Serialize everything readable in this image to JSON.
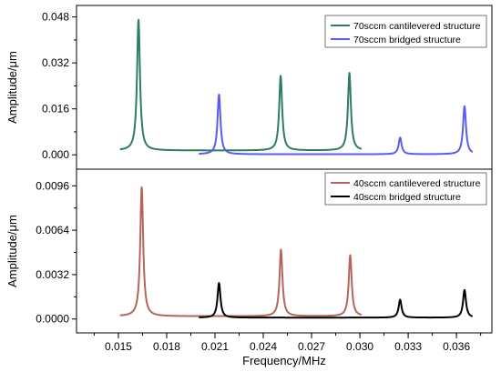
{
  "chart_data": [
    {
      "type": "line",
      "panel": "top",
      "ylabel": "Amplitude/μm",
      "ylim": [
        -0.005,
        0.052
      ],
      "yticks": [
        "0.000",
        "0.016",
        "0.032",
        "0.048"
      ],
      "grid": false,
      "legend_position": "top-right",
      "series": [
        {
          "name": "70sccm cantilevered structure",
          "color": "#2e7d5b",
          "baseline": 0.0015,
          "x_range": [
            0.0151,
            0.0301
          ],
          "peaks": [
            {
              "x": 0.01625,
              "y": 0.047
            },
            {
              "x": 0.02508,
              "y": 0.0275
            },
            {
              "x": 0.02935,
              "y": 0.0285
            }
          ]
        },
        {
          "name": "70sccm bridged structure",
          "color": "#5b5bf0",
          "baseline": 0.0002,
          "x_range": [
            0.02,
            0.037
          ],
          "peaks": [
            {
              "x": 0.02125,
              "y": 0.021
            },
            {
              "x": 0.0325,
              "y": 0.006
            },
            {
              "x": 0.0365,
              "y": 0.017
            }
          ]
        }
      ]
    },
    {
      "type": "line",
      "panel": "bottom",
      "ylabel": "Amplitude/μm",
      "xlabel": "Frequency/MHz",
      "xlim": [
        0.0124,
        0.0382
      ],
      "ylim": [
        -0.001,
        0.0108
      ],
      "xticks": [
        "0.015",
        "0.018",
        "0.021",
        "0.024",
        "0.027",
        "0.030",
        "0.033",
        "0.036"
      ],
      "yticks": [
        "0.0000",
        "0.0032",
        "0.0064",
        "0.0096"
      ],
      "grid": false,
      "legend_position": "top-right",
      "series": [
        {
          "name": "40sccm cantilevered structure",
          "color": "#b5655a",
          "baseline": 0.0002,
          "x_range": [
            0.0151,
            0.0301
          ],
          "peaks": [
            {
              "x": 0.01645,
              "y": 0.0095
            },
            {
              "x": 0.0251,
              "y": 0.005
            },
            {
              "x": 0.0294,
              "y": 0.0046
            }
          ]
        },
        {
          "name": "40sccm bridged structure",
          "color": "#000000",
          "baseline": 0.0001,
          "x_range": [
            0.02,
            0.037
          ],
          "peaks": [
            {
              "x": 0.02125,
              "y": 0.0026
            },
            {
              "x": 0.0325,
              "y": 0.0014
            },
            {
              "x": 0.0365,
              "y": 0.0021
            }
          ]
        }
      ]
    }
  ]
}
